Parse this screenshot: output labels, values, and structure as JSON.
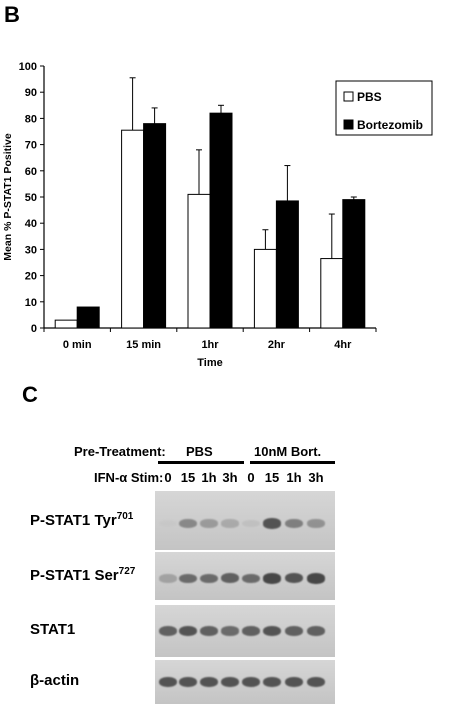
{
  "panel_b": {
    "label": "B"
  },
  "panel_c": {
    "label": "C"
  },
  "chart_data": {
    "type": "bar",
    "categories": [
      "0 min",
      "15 min",
      "1hr",
      "2hr",
      "4hr"
    ],
    "series": [
      {
        "name": "PBS",
        "color": "#ffffff",
        "values": [
          3,
          75.5,
          51,
          30,
          26.5
        ],
        "errors": [
          0,
          20,
          17,
          7.5,
          17
        ]
      },
      {
        "name": "Bortezomib",
        "color": "#000000",
        "values": [
          8,
          78,
          82,
          48.5,
          49
        ],
        "errors": [
          0,
          6,
          3,
          13.5,
          1
        ]
      }
    ],
    "xlabel": "Time",
    "ylabel": "Mean % P-STAT1 Positive",
    "ylim": [
      0,
      100
    ],
    "yticks": [
      0,
      10,
      20,
      30,
      40,
      50,
      60,
      70,
      80,
      90,
      100
    ],
    "grid": false,
    "legend_position": "top-right"
  },
  "blot": {
    "pretreatment_label": "Pre-Treatment:",
    "stim_label": "IFN-α Stim:",
    "groups": [
      "PBS",
      "10nM Bort."
    ],
    "lanes": [
      "0",
      "15",
      "1h",
      "3h",
      "0",
      "15",
      "1h",
      "3h"
    ],
    "rows": [
      {
        "name": "P-STAT1 Tyr",
        "sup": "701",
        "intensities": [
          0.05,
          0.55,
          0.45,
          0.35,
          0.15,
          0.8,
          0.6,
          0.5
        ]
      },
      {
        "name": "P-STAT1 Ser",
        "sup": "727",
        "intensities": [
          0.4,
          0.7,
          0.7,
          0.75,
          0.7,
          0.85,
          0.8,
          0.85
        ]
      },
      {
        "name": "STAT1",
        "sup": "",
        "intensities": [
          0.75,
          0.8,
          0.75,
          0.7,
          0.75,
          0.8,
          0.75,
          0.75
        ]
      },
      {
        "name": "β-actin",
        "sup": "",
        "intensities": [
          0.8,
          0.8,
          0.8,
          0.8,
          0.8,
          0.8,
          0.8,
          0.8
        ]
      }
    ]
  }
}
